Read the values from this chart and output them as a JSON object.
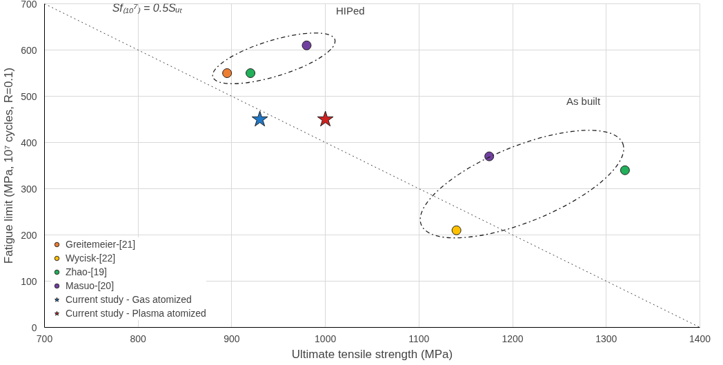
{
  "chart_data": {
    "type": "scatter",
    "xlabel": "Ultimate tensile strength (MPa)",
    "ylabel": "Fatigue limit (MPa, 10⁷ cycles, R=0.1)",
    "xlim": [
      700,
      1400
    ],
    "ylim": [
      0,
      700
    ],
    "xticks": [
      700,
      800,
      900,
      1000,
      1100,
      1200,
      1300,
      1400
    ],
    "yticks": [
      0,
      100,
      200,
      300,
      400,
      500,
      600,
      700
    ],
    "grid": true,
    "legend": "bottom left",
    "series": [
      {
        "name": "Greitemeier-[21]",
        "color": "#ed7d31",
        "marker": "circle",
        "x": [
          895
        ],
        "values": [
          550
        ]
      },
      {
        "name": "Wycisk-[22]",
        "color": "#ffc000",
        "marker": "circle",
        "x": [
          1140
        ],
        "values": [
          210
        ]
      },
      {
        "name": "Zhao-[19]",
        "color": "#22b05a",
        "marker": "circle",
        "x": [
          920,
          1320
        ],
        "values": [
          550,
          340
        ]
      },
      {
        "name": "Masuo-[20]",
        "color": "#7040a0",
        "marker": "circle",
        "x": [
          980,
          1175
        ],
        "values": [
          610,
          370
        ]
      },
      {
        "name": "Current study - Gas atomized",
        "color": "#1f78c8",
        "marker": "star",
        "x": [
          930
        ],
        "values": [
          450
        ]
      },
      {
        "name": "Current study - Plasma atomized",
        "color": "#d02020",
        "marker": "star",
        "x": [
          1000
        ],
        "values": [
          450
        ]
      },
      {
        "type": "line",
        "color": "#404040",
        "line_style": "dotted",
        "x": [
          700,
          1400
        ],
        "values": [
          700,
          0
        ]
      }
    ],
    "annotations": [
      "Sf₍₁₀⁷₎ = 0.5Sᵤₜ",
      "HIPed",
      "As built"
    ]
  }
}
